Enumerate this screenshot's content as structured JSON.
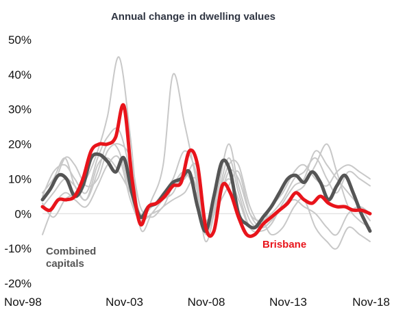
{
  "chart_data": {
    "type": "line",
    "title": "Annual change in dwelling values",
    "xlabel": "",
    "ylabel": "",
    "x_ticks": [
      "Nov-98",
      "Nov-03",
      "Nov-08",
      "Nov-13",
      "Nov-18"
    ],
    "x_tick_years": [
      1998.83,
      2003.83,
      2008.83,
      2013.83,
      2018.83
    ],
    "xlim": [
      1998.83,
      2018.83
    ],
    "y_ticks": [
      "50%",
      "40%",
      "30%",
      "20%",
      "10%",
      "0%",
      "-10%",
      "-20%"
    ],
    "y_tick_values": [
      50,
      40,
      30,
      20,
      10,
      0,
      -10,
      -20
    ],
    "ylim": [
      -20,
      50
    ],
    "grid": false,
    "annotations": {
      "combined_line1": "Combined",
      "combined_line2": "capitals",
      "brisbane": "Brisbane"
    },
    "colors": {
      "combined": "#555555",
      "brisbane": "#e8141b",
      "other_capitals": "#c8c8c8",
      "zero_line": "#d9d9d9"
    },
    "series": [
      {
        "name": "Combined capitals",
        "role": "highlight",
        "x": [
          1998.83,
          1999.3,
          1999.8,
          2000.3,
          2000.8,
          2001.3,
          2001.8,
          2002.3,
          2002.8,
          2003.3,
          2003.8,
          2004.3,
          2004.8,
          2005.3,
          2005.8,
          2006.3,
          2006.8,
          2007.3,
          2007.8,
          2008.3,
          2008.8,
          2009.3,
          2009.8,
          2010.3,
          2010.8,
          2011.3,
          2011.8,
          2012.3,
          2012.8,
          2013.3,
          2013.8,
          2014.3,
          2014.8,
          2015.3,
          2015.8,
          2016.3,
          2016.8,
          2017.3,
          2017.8,
          2018.3,
          2018.83
        ],
        "y": [
          4,
          7,
          11,
          10,
          5,
          8,
          16,
          17,
          15,
          12,
          16,
          6,
          -1,
          2,
          3,
          6,
          9,
          10,
          12,
          2,
          -5,
          5,
          15,
          12,
          0,
          -3,
          -4,
          -1,
          2,
          6,
          10,
          11,
          9,
          12,
          9,
          4,
          8,
          11,
          6,
          0,
          -5
        ]
      },
      {
        "name": "Brisbane",
        "role": "highlight",
        "x": [
          1998.83,
          1999.3,
          1999.8,
          2000.3,
          2000.8,
          2001.3,
          2001.8,
          2002.3,
          2002.8,
          2003.3,
          2003.8,
          2004.3,
          2004.8,
          2005.3,
          2005.8,
          2006.3,
          2006.8,
          2007.3,
          2007.8,
          2008.3,
          2008.8,
          2009.3,
          2009.8,
          2010.3,
          2010.8,
          2011.3,
          2011.8,
          2012.3,
          2012.8,
          2013.3,
          2013.8,
          2014.3,
          2014.8,
          2015.3,
          2015.8,
          2016.3,
          2016.8,
          2017.3,
          2017.8,
          2018.3,
          2018.83
        ],
        "y": [
          2,
          1,
          4,
          4,
          5,
          10,
          18,
          20,
          20,
          22,
          31,
          10,
          -3,
          2,
          3,
          5,
          8,
          9,
          18,
          14,
          -4,
          -5,
          8,
          6,
          -1,
          -6,
          -6,
          -3,
          -1,
          1,
          3,
          6,
          4,
          3,
          5,
          3,
          2,
          2,
          1,
          1,
          0
        ]
      },
      {
        "name": "",
        "role": "background",
        "x": [
          1998.83,
          1999.5,
          2000.2,
          2000.8,
          2001.5,
          2002.2,
          2002.8,
          2003.5,
          2004.2,
          2004.8,
          2005.5,
          2006.2,
          2006.8,
          2007.5,
          2008.2,
          2008.8,
          2009.5,
          2010.2,
          2010.8,
          2011.5,
          2012.2,
          2012.8,
          2013.5,
          2014.2,
          2014.8,
          2015.5,
          2016.2,
          2016.8,
          2017.5,
          2018.2,
          2018.83
        ],
        "y": [
          3,
          -1,
          4,
          6,
          10,
          18,
          28,
          45,
          22,
          -4,
          0,
          4,
          6,
          12,
          8,
          -8,
          4,
          16,
          6,
          -4,
          -5,
          -3,
          3,
          8,
          10,
          18,
          14,
          10,
          6,
          2,
          -2
        ]
      },
      {
        "name": "",
        "role": "background",
        "x": [
          1998.83,
          1999.5,
          2000.2,
          2000.8,
          2001.5,
          2002.2,
          2002.8,
          2003.5,
          2004.2,
          2004.8,
          2005.5,
          2006.2,
          2006.8,
          2007.5,
          2008.2,
          2008.8,
          2009.5,
          2010.2,
          2010.8,
          2011.5,
          2012.2,
          2012.8,
          2013.5,
          2014.2,
          2014.8,
          2015.5,
          2016.2,
          2016.8,
          2017.5,
          2018.2,
          2018.83
        ],
        "y": [
          6,
          10,
          16,
          8,
          4,
          12,
          20,
          18,
          6,
          -2,
          4,
          14,
          40,
          26,
          10,
          -6,
          6,
          20,
          8,
          -2,
          -4,
          -2,
          2,
          6,
          8,
          14,
          20,
          12,
          2,
          -2,
          -4
        ]
      },
      {
        "name": "",
        "role": "background",
        "x": [
          1998.83,
          1999.5,
          2000.2,
          2000.8,
          2001.5,
          2002.2,
          2002.8,
          2003.5,
          2004.2,
          2004.8,
          2005.5,
          2006.2,
          2006.8,
          2007.5,
          2008.2,
          2008.8,
          2009.5,
          2010.2,
          2010.8,
          2011.5,
          2012.2,
          2012.8,
          2013.5,
          2014.2,
          2014.8,
          2015.5,
          2016.2,
          2016.8,
          2017.5,
          2018.2,
          2018.83
        ],
        "y": [
          5,
          12,
          14,
          10,
          6,
          16,
          22,
          24,
          12,
          0,
          2,
          6,
          10,
          18,
          12,
          -4,
          2,
          12,
          10,
          0,
          -2,
          0,
          4,
          10,
          12,
          16,
          10,
          6,
          12,
          10,
          8
        ]
      },
      {
        "name": "",
        "role": "background",
        "x": [
          1998.83,
          1999.5,
          2000.2,
          2000.8,
          2001.5,
          2002.2,
          2002.8,
          2003.5,
          2004.2,
          2004.8,
          2005.5,
          2006.2,
          2006.8,
          2007.5,
          2008.2,
          2008.8,
          2009.5,
          2010.2,
          2010.8,
          2011.5,
          2012.2,
          2012.8,
          2013.5,
          2014.2,
          2014.8,
          2015.5,
          2016.2,
          2016.8,
          2017.5,
          2018.2,
          2018.83
        ],
        "y": [
          -6,
          2,
          6,
          4,
          2,
          8,
          14,
          16,
          4,
          -2,
          0,
          2,
          8,
          12,
          6,
          -2,
          4,
          10,
          4,
          -4,
          -2,
          -6,
          -4,
          2,
          4,
          -4,
          -8,
          -10,
          -4,
          -6,
          -8
        ]
      },
      {
        "name": "",
        "role": "background",
        "x": [
          1998.83,
          1999.5,
          2000.2,
          2000.8,
          2001.5,
          2002.2,
          2002.8,
          2003.5,
          2004.2,
          2004.8,
          2005.5,
          2006.2,
          2006.8,
          2007.5,
          2008.2,
          2008.8,
          2009.5,
          2010.2,
          2010.8,
          2011.5,
          2012.2,
          2012.8,
          2013.5,
          2014.2,
          2014.8,
          2015.5,
          2016.2,
          2016.8,
          2017.5,
          2018.2,
          2018.83
        ],
        "y": [
          4,
          8,
          16,
          14,
          8,
          10,
          18,
          20,
          16,
          2,
          -1,
          2,
          4,
          6,
          10,
          -4,
          4,
          14,
          14,
          2,
          -3,
          2,
          6,
          12,
          14,
          10,
          8,
          12,
          14,
          12,
          10
        ]
      },
      {
        "name": "",
        "role": "background",
        "x": [
          1998.83,
          1999.5,
          2000.2,
          2000.8,
          2001.5,
          2002.2,
          2002.8,
          2003.5,
          2004.2,
          2004.8,
          2005.5,
          2006.2,
          2006.8,
          2007.5,
          2008.2,
          2008.8,
          2009.5,
          2010.2,
          2010.8,
          2011.5,
          2012.2,
          2012.8,
          2013.5,
          2014.2,
          2014.8,
          2015.5,
          2016.2,
          2016.8,
          2017.5,
          2018.2,
          2018.83
        ],
        "y": [
          2,
          6,
          10,
          8,
          4,
          14,
          16,
          12,
          6,
          0,
          2,
          4,
          8,
          10,
          14,
          -2,
          2,
          8,
          12,
          0,
          -4,
          -2,
          2,
          4,
          2,
          0,
          -4,
          -6,
          0,
          2,
          0
        ]
      }
    ]
  }
}
